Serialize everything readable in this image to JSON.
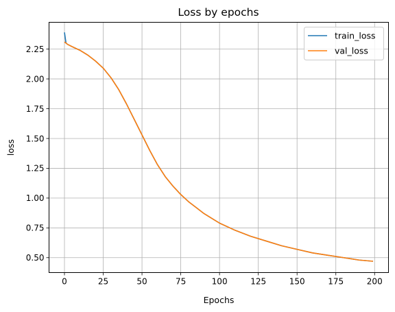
{
  "chart_data": {
    "type": "line",
    "title": "Loss by epochs",
    "xlabel": "Epochs",
    "ylabel": "loss",
    "xlim": [
      -9.95,
      208.95
    ],
    "ylim": [
      0.375,
      2.475
    ],
    "xticks": [
      0,
      25,
      50,
      75,
      100,
      125,
      150,
      175,
      200
    ],
    "yticks": [
      0.5,
      0.75,
      1.0,
      1.25,
      1.5,
      1.75,
      2.0,
      2.25
    ],
    "xtick_labels": [
      "0",
      "25",
      "50",
      "75",
      "100",
      "125",
      "150",
      "175",
      "200"
    ],
    "ytick_labels": [
      "0.50",
      "0.75",
      "1.00",
      "1.25",
      "1.50",
      "1.75",
      "2.00",
      "2.25"
    ],
    "grid": true,
    "legend": "top-right",
    "series": [
      {
        "name": "train_loss",
        "color": "#1f77b4",
        "x": [
          0,
          1,
          2,
          5,
          10,
          15,
          20,
          25,
          30,
          35,
          40,
          45,
          50,
          55,
          60,
          65,
          70,
          75,
          80,
          85,
          90,
          95,
          100,
          110,
          120,
          130,
          140,
          150,
          160,
          170,
          180,
          190,
          199
        ],
        "y": [
          2.39,
          2.3,
          2.29,
          2.27,
          2.24,
          2.2,
          2.15,
          2.09,
          2.01,
          1.91,
          1.79,
          1.66,
          1.53,
          1.4,
          1.28,
          1.18,
          1.1,
          1.03,
          0.97,
          0.92,
          0.87,
          0.83,
          0.79,
          0.73,
          0.68,
          0.64,
          0.6,
          0.57,
          0.54,
          0.52,
          0.5,
          0.48,
          0.47
        ]
      },
      {
        "name": "val_loss",
        "color": "#ff7f0e",
        "x": [
          0,
          1,
          2,
          5,
          10,
          15,
          20,
          25,
          30,
          35,
          40,
          45,
          50,
          55,
          60,
          65,
          70,
          75,
          80,
          85,
          90,
          95,
          100,
          110,
          120,
          130,
          140,
          150,
          160,
          170,
          180,
          190,
          199
        ],
        "y": [
          2.31,
          2.3,
          2.29,
          2.27,
          2.24,
          2.2,
          2.15,
          2.09,
          2.01,
          1.91,
          1.79,
          1.66,
          1.53,
          1.4,
          1.28,
          1.18,
          1.1,
          1.03,
          0.97,
          0.92,
          0.87,
          0.83,
          0.79,
          0.73,
          0.68,
          0.64,
          0.6,
          0.57,
          0.54,
          0.52,
          0.5,
          0.48,
          0.47
        ]
      }
    ]
  }
}
